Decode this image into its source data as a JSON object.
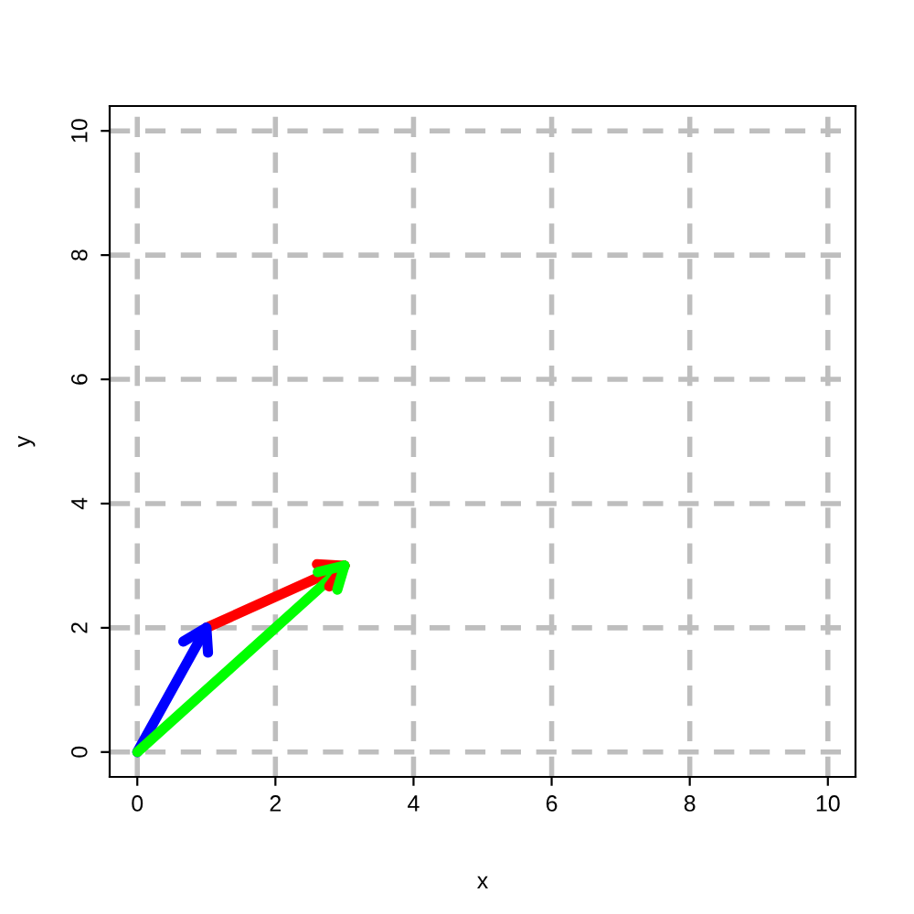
{
  "chart_data": {
    "type": "line",
    "xlabel": "x",
    "ylabel": "y",
    "series": [
      {
        "color": "#0000ff",
        "x": [
          0,
          1
        ],
        "values": [
          0,
          2
        ]
      },
      {
        "color": "#ff0000",
        "x": [
          1,
          3
        ],
        "values": [
          2,
          3
        ]
      },
      {
        "color": "#00ff00",
        "x": [
          0,
          3
        ],
        "values": [
          0,
          3
        ]
      }
    ],
    "xlim": [
      -0.4,
      10.4
    ],
    "ylim": [
      -0.4,
      10.4
    ],
    "xticks": [
      0,
      2,
      4,
      6,
      8,
      10
    ],
    "yticks": [
      0,
      2,
      4,
      6,
      8,
      10
    ],
    "grid": true,
    "line_style": "solid",
    "marker": "none",
    "legend": false
  }
}
